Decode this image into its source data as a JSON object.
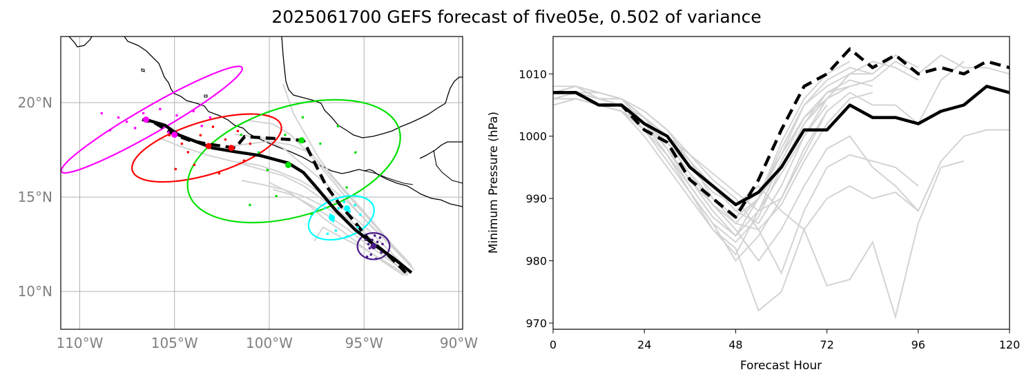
{
  "title": "2025061700 GEFS forecast of five05e, 0.502 of variance",
  "colors": {
    "ensemble": "#d3d3d3",
    "mean_track": "#000000",
    "grid": "#b0b0b0",
    "coast": "#000000",
    "ellipse_24h": "#ff00ff",
    "ellipse_48h": "#ff0000",
    "ellipse_72h": "#00e000",
    "ellipse_96h": "#00ffff",
    "ellipse_120h": "#4b1a8a"
  },
  "chart_data": [
    {
      "type": "line",
      "subtype": "track-map",
      "x_ticks": [
        "110°W",
        "105°W",
        "100°W",
        "95°W",
        "90°W"
      ],
      "y_ticks": [
        "10°N",
        "15°N",
        "20°N"
      ],
      "lon_range": [
        -111,
        -89.8
      ],
      "lat_range": [
        8,
        23.5
      ],
      "grid": true,
      "series": [
        {
          "style": "solid",
          "lon": [
            -92.5,
            -93.5,
            -94.5,
            -95.5,
            -96.5,
            -97.5,
            -98.2,
            -99.0,
            -100.5,
            -101.8,
            -103.0,
            -104.8,
            -105.5,
            -106.5
          ],
          "lat": [
            11.0,
            11.8,
            12.5,
            13.3,
            14.3,
            15.5,
            16.3,
            16.8,
            17.2,
            17.4,
            17.6,
            18.3,
            18.8,
            19.1
          ]
        },
        {
          "style": "dashed",
          "lon": [
            -92.8,
            -93.8,
            -94.8,
            -95.5,
            -96.2,
            -97.0,
            -97.5,
            -98.2,
            -101.3,
            -101.8,
            -103.2,
            -104.2,
            -105.0,
            -106.0,
            -106.7
          ],
          "lat": [
            11.0,
            12.0,
            12.8,
            13.7,
            14.5,
            15.6,
            16.6,
            18.0,
            18.2,
            17.6,
            17.8,
            18.0,
            18.3,
            18.9,
            19.1
          ]
        }
      ],
      "ellipses": [
        {
          "hour": 24,
          "color_key": "ellipse_24h",
          "lon": -106.2,
          "lat": 19.1,
          "rlon": 5.5,
          "rlat": 0.7,
          "angle": -30
        },
        {
          "hour": 48,
          "color_key": "ellipse_48h",
          "lon": -103.3,
          "lat": 17.6,
          "rlon": 4.1,
          "rlat": 1.4,
          "angle": -17
        },
        {
          "hour": 72,
          "color_key": "ellipse_72h",
          "lon": -98.7,
          "lat": 16.9,
          "rlon": 5.8,
          "rlat": 2.9,
          "angle": -17
        },
        {
          "hour": 96,
          "color_key": "ellipse_96h",
          "lon": -96.2,
          "lat": 13.9,
          "rlon": 1.8,
          "rlat": 1.05,
          "angle": -20
        },
        {
          "hour": 120,
          "color_key": "ellipse_120h",
          "lon": -94.5,
          "lat": 12.4,
          "rlon": 0.85,
          "rlat": 0.7,
          "angle": 0
        }
      ],
      "means": [
        {
          "color_key": "ellipse_24h",
          "lon": -106.5,
          "lat": 19.1
        },
        {
          "color_key": "ellipse_24h",
          "lon": -105.0,
          "lat": 18.3
        },
        {
          "color_key": "ellipse_48h",
          "lon": -103.2,
          "lat": 17.7
        },
        {
          "color_key": "ellipse_48h",
          "lon": -102.0,
          "lat": 17.6
        },
        {
          "color_key": "ellipse_72h",
          "lon": -99.0,
          "lat": 16.7
        },
        {
          "color_key": "ellipse_72h",
          "lon": -98.3,
          "lat": 18.0
        },
        {
          "color_key": "ellipse_96h",
          "lon": -96.7,
          "lat": 13.9
        },
        {
          "color_key": "ellipse_96h",
          "lon": -95.9,
          "lat": 14.4
        },
        {
          "color_key": "ellipse_120h",
          "lon": -94.5,
          "lat": 12.4
        }
      ]
    },
    {
      "type": "line",
      "xlabel": "Forecast Hour",
      "ylabel": "Minimum Pressure (hPa)",
      "xlim": [
        0,
        120
      ],
      "ylim": [
        969,
        1016
      ],
      "x_ticks": [
        0,
        24,
        48,
        72,
        96,
        120
      ],
      "y_ticks": [
        970,
        980,
        990,
        1000,
        1010
      ],
      "series": [
        {
          "style": "solid",
          "x": [
            0,
            6,
            12,
            18,
            24,
            30,
            36,
            42,
            48,
            54,
            60,
            66,
            72,
            78,
            84,
            90,
            96,
            102,
            108,
            114,
            120
          ],
          "y": [
            1007,
            1007,
            1005,
            1005,
            1002,
            1000,
            995,
            992,
            989,
            991,
            995,
            1001,
            1001,
            1005,
            1003,
            1003,
            1002,
            1004,
            1005,
            1008,
            1007
          ]
        },
        {
          "style": "dashed",
          "x": [
            0,
            6,
            12,
            18,
            24,
            30,
            36,
            42,
            48,
            54,
            60,
            66,
            72,
            78,
            84,
            90,
            96,
            102,
            108,
            114,
            120
          ],
          "y": [
            1007,
            1007,
            1005,
            1005,
            1001,
            999,
            993,
            990,
            987,
            993,
            1001,
            1008,
            1010,
            1014,
            1011,
            1013,
            1010,
            1011,
            1010,
            1012,
            1011
          ]
        },
        {
          "style": "member",
          "x": [
            0,
            6,
            12,
            18,
            24,
            30,
            36,
            42,
            48,
            54,
            60,
            66,
            72,
            78,
            84
          ],
          "y": [
            1006,
            1007,
            1006,
            1006,
            1002,
            998,
            993,
            988,
            984,
            990,
            998,
            1005,
            1008,
            1010,
            1010
          ]
        },
        {
          "style": "member",
          "x": [
            0,
            6,
            12,
            18,
            24,
            30,
            36,
            42,
            48,
            54,
            60,
            66,
            72,
            78,
            84,
            90,
            96
          ],
          "y": [
            1007,
            1008,
            1006,
            1005,
            1003,
            1000,
            996,
            992,
            988,
            986,
            992,
            1000,
            1006,
            1010,
            1012,
            1011,
            1009
          ]
        },
        {
          "style": "member",
          "x": [
            0,
            6,
            12,
            18,
            24,
            30,
            36,
            42,
            48,
            54,
            60,
            66,
            72,
            78,
            84
          ],
          "y": [
            1006,
            1006,
            1005,
            1004,
            1001,
            997,
            991,
            986,
            983,
            987,
            995,
            1002,
            1007,
            1009,
            1008
          ]
        },
        {
          "style": "member",
          "x": [
            0,
            6,
            12,
            18,
            24,
            30,
            36,
            42,
            48,
            54,
            60,
            66,
            72
          ],
          "y": [
            1007,
            1007,
            1007,
            1006,
            1004,
            1001,
            997,
            994,
            991,
            988,
            990,
            997,
            1004
          ]
        },
        {
          "style": "member",
          "x": [
            0,
            6,
            12,
            18,
            24,
            30,
            36,
            42,
            48,
            54,
            60,
            66,
            72,
            78,
            84,
            90,
            96,
            102,
            108,
            114,
            120
          ],
          "y": [
            1006,
            1007,
            1006,
            1005,
            1003,
            999,
            994,
            989,
            985,
            980,
            985,
            992,
            998,
            1000,
            995,
            992,
            988,
            996,
            1000,
            1001,
            1001
          ]
        },
        {
          "style": "member",
          "x": [
            0,
            6,
            12,
            18,
            24,
            30,
            36,
            42,
            48,
            54,
            60,
            66,
            72,
            78,
            84,
            90,
            96,
            102,
            108
          ],
          "y": [
            1005,
            1006,
            1005,
            1004,
            1000,
            995,
            990,
            985,
            982,
            972,
            975,
            985,
            976,
            977,
            983,
            971,
            986,
            995,
            996
          ]
        },
        {
          "style": "member",
          "x": [
            0,
            6,
            12,
            18,
            24,
            30,
            36,
            42,
            48,
            54,
            60,
            66,
            72,
            78,
            84,
            90,
            96
          ],
          "y": [
            1007,
            1008,
            1007,
            1006,
            1003,
            1000,
            997,
            993,
            990,
            985,
            978,
            988,
            995,
            997,
            996,
            995,
            992
          ]
        },
        {
          "style": "member",
          "x": [
            0,
            6,
            12,
            18,
            24,
            30,
            36,
            42,
            48,
            54,
            60,
            66,
            72,
            78,
            84,
            90,
            96,
            102,
            108
          ],
          "y": [
            1006,
            1007,
            1006,
            1005,
            1001,
            996,
            991,
            986,
            980,
            984,
            990,
            998,
            1004,
            1007,
            1005,
            1005,
            1002,
            1009,
            1012
          ]
        },
        {
          "style": "member",
          "x": [
            0,
            6,
            12,
            18,
            24,
            30,
            36,
            42,
            48,
            54,
            60,
            66,
            72,
            78,
            84,
            90,
            96
          ],
          "y": [
            1008,
            1008,
            1007,
            1006,
            1004,
            1001,
            996,
            990,
            987,
            990,
            997,
            1005,
            1009,
            1011,
            1010,
            1013,
            1011
          ]
        },
        {
          "style": "member",
          "x": [
            0,
            6,
            12,
            18,
            24,
            30,
            36,
            42,
            48,
            54,
            60,
            66,
            72,
            78,
            84,
            90,
            96,
            102,
            108,
            114,
            120
          ],
          "y": [
            1006,
            1006,
            1005,
            1004,
            1002,
            998,
            993,
            989,
            986,
            990,
            995,
            1002,
            1006,
            1008,
            1009,
            1012,
            1010,
            1013,
            1011,
            1011,
            1010
          ]
        },
        {
          "style": "member",
          "x": [
            0,
            6,
            12,
            18,
            24,
            30,
            36,
            42,
            48,
            54,
            60,
            66,
            72
          ],
          "y": [
            1007,
            1008,
            1007,
            1006,
            1003,
            998,
            992,
            987,
            984,
            988,
            994,
            1000,
            1005
          ]
        },
        {
          "style": "member",
          "x": [
            0,
            6,
            12,
            18,
            24,
            30,
            36,
            42,
            48,
            54,
            60,
            66,
            72,
            78,
            84,
            90,
            96
          ],
          "y": [
            1006,
            1007,
            1006,
            1005,
            1002,
            999,
            995,
            991,
            989,
            992,
            988,
            985,
            990,
            992,
            990,
            991,
            988
          ]
        },
        {
          "style": "member",
          "x": [
            0,
            6,
            12,
            18,
            24,
            30,
            36,
            42,
            48,
            54,
            60,
            66,
            72,
            78
          ],
          "y": [
            1005,
            1006,
            1005,
            1004,
            1001,
            997,
            992,
            987,
            984,
            990,
            999,
            1006,
            1010,
            1012
          ]
        },
        {
          "style": "member",
          "x": [
            0,
            6,
            12,
            18,
            24,
            30,
            36,
            42,
            48,
            54,
            60,
            66,
            72,
            78,
            84
          ],
          "y": [
            1007,
            1007,
            1006,
            1005,
            1002,
            997,
            991,
            985,
            981,
            988,
            996,
            1003,
            1007,
            1008,
            1009
          ]
        },
        {
          "style": "member",
          "x": [
            0,
            6,
            12,
            18,
            24,
            30,
            36,
            42,
            48,
            54,
            60,
            66,
            72,
            78
          ],
          "y": [
            1006,
            1006,
            1005,
            1005,
            1003,
            1000,
            996,
            992,
            988,
            991,
            997,
            1003,
            1006,
            1008
          ]
        },
        {
          "style": "member",
          "x": [
            0,
            6,
            12,
            18,
            24,
            30,
            36,
            42,
            48,
            54,
            60,
            66,
            72,
            78,
            84
          ],
          "y": [
            1007,
            1008,
            1006,
            1006,
            1003,
            999,
            994,
            990,
            986,
            985,
            989,
            996,
            1002,
            1006,
            1007
          ]
        }
      ]
    }
  ]
}
